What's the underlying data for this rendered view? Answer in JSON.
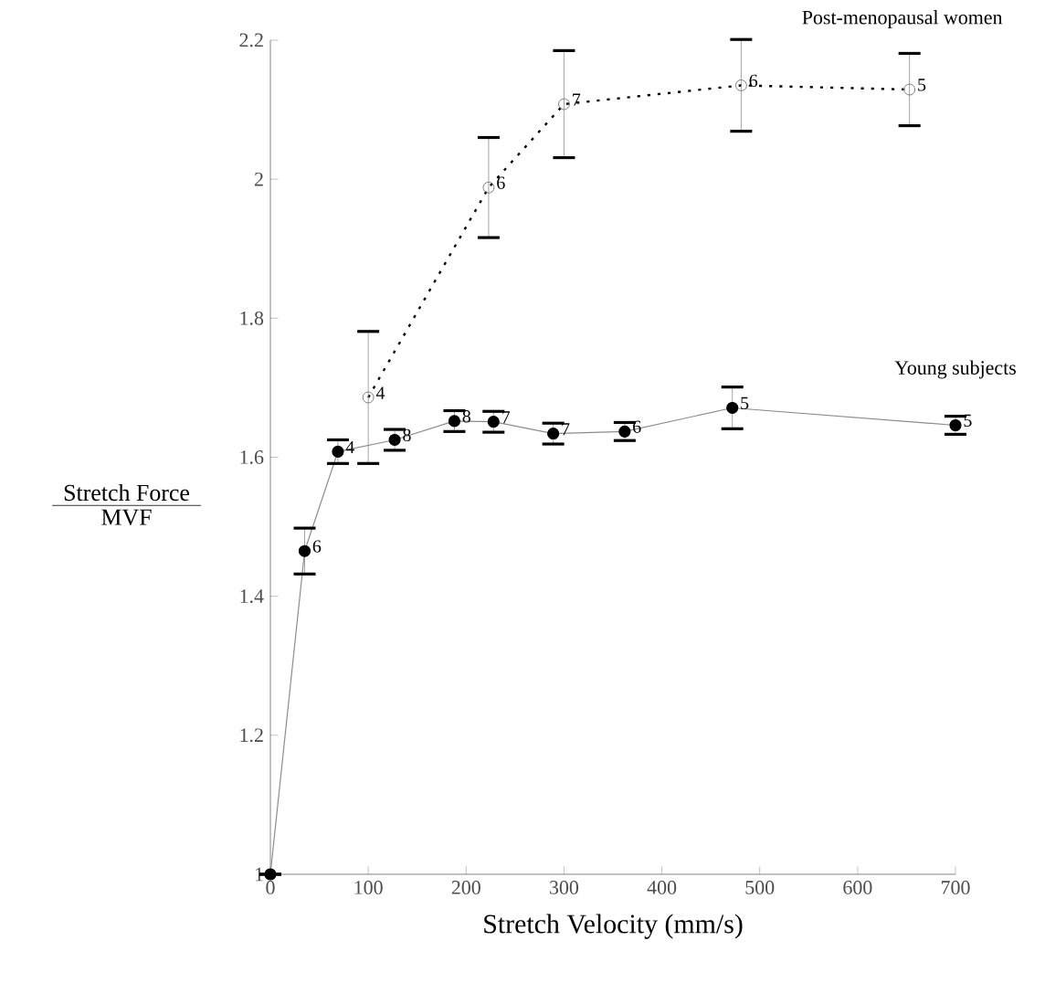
{
  "chart_data": {
    "type": "line",
    "xlabel": "Stretch Velocity (mm/s)",
    "ylabel": "Stretch Force",
    "xlim": [
      0,
      700
    ],
    "ylim": [
      1,
      2.2
    ],
    "xticks": [
      0,
      100,
      200,
      300,
      400,
      500,
      600,
      700
    ],
    "yticks": [
      1,
      {
        "value": 1.2,
        "label": "1.2"
      },
      {
        "value": 1.4,
        "label": "1.4"
      },
      {
        "value": 1.6,
        "label": "1.6"
      },
      {
        "value": 1.8,
        "label": "1.8"
      },
      2,
      {
        "value": 2.2,
        "label": "2.2"
      }
    ],
    "marker": "circle",
    "series": [
      {
        "name": "Young subjects",
        "color": "#000000",
        "line_style": "solid",
        "x": [
          0,
          35,
          69,
          127,
          188,
          228,
          289,
          362,
          472,
          700
        ],
        "values": [
          1.0,
          1.465,
          1.608,
          1.625,
          1.652,
          1.651,
          1.634,
          1.637,
          1.671,
          1.646
        ],
        "errors": [
          null,
          0.033,
          0.017,
          0.015,
          0.015,
          0.015,
          0.015,
          0.013,
          0.03,
          0.013
        ]
      },
      {
        "name": "Post-menopausal women",
        "color": "#000000",
        "line_style": "dotted",
        "x": [
          100,
          223,
          300,
          481,
          653
        ],
        "values": [
          1.686,
          1.988,
          2.108,
          2.135,
          2.129
        ],
        "errors": [
          0.095,
          0.072,
          0.077,
          0.066,
          0.052
        ]
      }
    ],
    "annotations": [
      "MVF",
      {
        "text": "6",
        "x": 35,
        "y": 1.465
      },
      {
        "text": "4",
        "x": 69,
        "y": 1.608
      },
      {
        "text": "8",
        "x": 127,
        "y": 1.625
      },
      {
        "text": "8",
        "x": 188,
        "y": 1.652
      },
      {
        "text": "7",
        "x": 228,
        "y": 1.651
      },
      {
        "text": "7",
        "x": 289,
        "y": 1.634
      },
      {
        "text": "6",
        "x": 362,
        "y": 1.637
      },
      {
        "text": "5",
        "x": 472,
        "y": 1.671
      },
      {
        "text": "5",
        "x": 700,
        "y": 1.646
      },
      {
        "text": "4",
        "x": 100,
        "y": 1.686
      },
      {
        "text": "6",
        "x": 223,
        "y": 1.988
      },
      {
        "text": "7",
        "x": 300,
        "y": 2.108
      },
      {
        "text": "6",
        "x": 481,
        "y": 2.135
      },
      {
        "text": "5",
        "x": 653,
        "y": 2.129
      }
    ]
  }
}
